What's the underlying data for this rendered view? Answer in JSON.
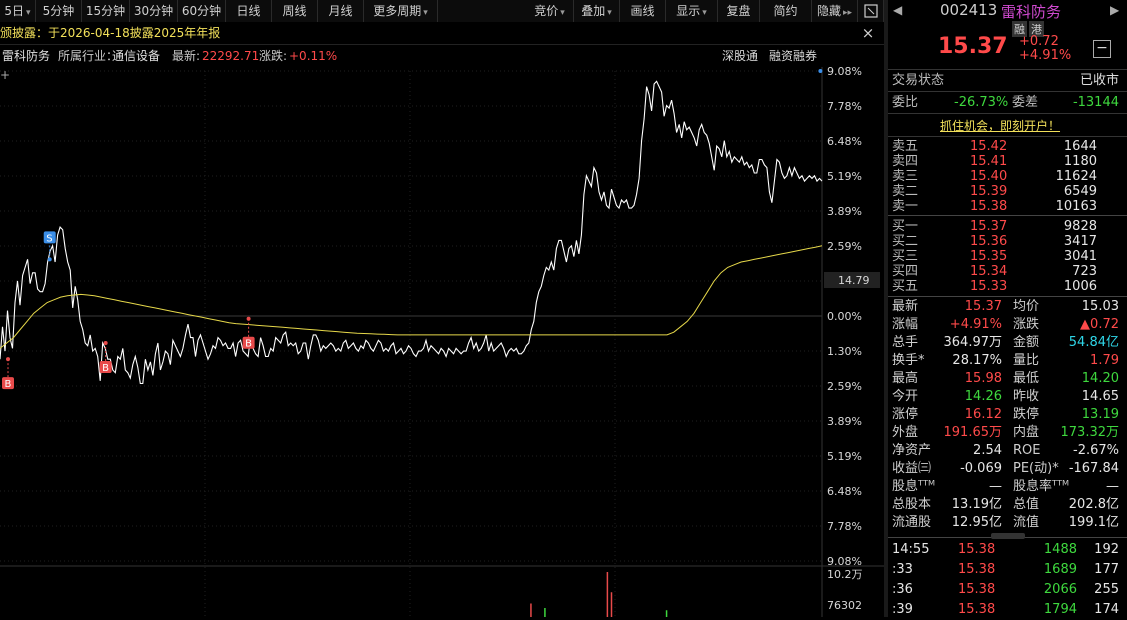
{
  "toolbar": {
    "left_items": [
      "5日",
      "5分钟",
      "15分钟",
      "30分钟",
      "60分钟",
      "日线",
      "周线",
      "月线",
      "更多周期"
    ],
    "right_items": [
      "竞价",
      "叠加",
      "画线",
      "显示",
      "复盘",
      "简约",
      "隐藏"
    ],
    "more_arrow": "▸▸",
    "dropdown_arrow": "▾"
  },
  "infobar": {
    "text": "颁披露：于2026-04-18披露2025年年报",
    "close": "×"
  },
  "stockbar": {
    "name": "雷科防务",
    "industry_label": "所属行业：",
    "industry": "通信设备",
    "latest_label": "最新:",
    "latest": "22292.71",
    "change_label": "涨跌:",
    "change": "+0.11%",
    "right_links": [
      "深股通",
      "融资融券"
    ]
  },
  "chart_data": {
    "type": "line",
    "y_ticks_pct": [
      "9.08%",
      "7.78%",
      "6.48%",
      "5.19%",
      "3.89%",
      "2.59%",
      "1.30%",
      "0.00%",
      "1.30%",
      "2.59%",
      "3.89%",
      "5.19%",
      "6.48%",
      "7.78%",
      "9.08%"
    ],
    "pct_range": [
      -9.08,
      9.08
    ],
    "cursor_price": "14.79",
    "series": [
      {
        "name": "",
        "color": "#ffffff",
        "values": [
          -1.6,
          -0.4,
          -1.3,
          0.2,
          -0.8,
          -1.2,
          0.5,
          1.3,
          0.4,
          1.5,
          1.8,
          2.1,
          1.2,
          1.6,
          1.6,
          1.0,
          0.9,
          0.9,
          1.2,
          2.0,
          2.4,
          2.6,
          2.0,
          3.0,
          3.3,
          3.2,
          2.5,
          2.0,
          1.7,
          0.3,
          1.1,
          0.6,
          -0.2,
          -0.5,
          -1.0,
          -1.1,
          -0.7,
          -1.3,
          -1.2,
          -1.5,
          -2.4,
          -1.0,
          -1.2,
          -1.6,
          -1.6,
          -2.0,
          -2.1,
          -1.5,
          -1.6,
          -1.2,
          -2.0,
          -2.1,
          -2.3,
          -1.8,
          -1.5,
          -1.9,
          -2.5,
          -2.5,
          -1.6,
          -2.0,
          -1.7,
          -2.2,
          -1.4,
          -1.0,
          -2.0,
          -1.7,
          -1.3,
          -1.4,
          -1.8,
          -0.9,
          -1.1,
          -1.3,
          -1.5,
          -1.2,
          -0.7,
          -0.3,
          -0.8,
          -0.8,
          -1.5,
          -0.9,
          -0.7,
          -1.0,
          -1.3,
          -1.6,
          -1.4,
          -1.1,
          -1.2,
          -0.8,
          -0.9,
          -1.1,
          -1.0,
          -1.2,
          -1.2,
          -1.0,
          -1.5,
          -1.0,
          -0.9,
          -1.3,
          -1.4,
          -1.5,
          -0.8,
          -1.2,
          -1.4,
          -1.5,
          -0.8,
          -1.1,
          -1.5,
          -1.5,
          -1.2,
          -1.3,
          -0.8,
          -0.9,
          -1.0,
          -0.7,
          -0.6,
          -1.1,
          -1.0,
          -1.1,
          -1.0,
          -1.4,
          -1.3,
          -1.0,
          -1.0,
          -1.6,
          -1.1,
          -0.7,
          -0.7,
          -0.9,
          -1.3,
          -1.1,
          -1.2,
          -1.1,
          -1.0,
          -1.1,
          -1.3,
          -1.2,
          -1.3,
          -1.0,
          -0.9,
          -1.2,
          -1.1,
          -1.0,
          -1.2,
          -1.3,
          -1.1,
          -1.2,
          -0.9,
          -1.0,
          -1.2,
          -1.3,
          -1.1,
          -0.9,
          -1.0,
          -1.3,
          -1.2,
          -1.3,
          -1.1,
          -1.0,
          -1.4,
          -1.3,
          -1.2,
          -1.4,
          -1.3,
          -1.1,
          -1.2,
          -1.4,
          -1.5,
          -1.3,
          -1.3,
          -1.2,
          -0.9,
          -1.3,
          -1.1,
          -1.2,
          -1.3,
          -1.4,
          -1.2,
          -1.3,
          -1.5,
          -1.2,
          -1.3,
          -1.4,
          -1.2,
          -1.3,
          -1.4,
          -1.3,
          -1.3,
          -1.0,
          -0.8,
          -1.2,
          -1.0,
          -1.3,
          -1.2,
          -1.0,
          -0.7,
          -1.3,
          -1.0,
          -1.3,
          -1.2,
          -1.1,
          -1.0,
          -1.2,
          -1.5,
          -1.3,
          -1.2,
          -1.3,
          -1.2,
          -1.4,
          -1.4,
          -1.3,
          -1.1,
          -1.0,
          -0.5,
          -0.2,
          0.5,
          0.9,
          1.1,
          1.5,
          1.8,
          1.7,
          2.0,
          1.7,
          2.5,
          2.8,
          2.8,
          2.4,
          2.0,
          2.5,
          2.6,
          2.2,
          2.8,
          2.3,
          3.0,
          4.5,
          5.2,
          5.0,
          4.8,
          5.5,
          5.3,
          4.6,
          4.3,
          4.6,
          4.1,
          4.0,
          4.7,
          4.4,
          4.1,
          4.0,
          4.3,
          4.2,
          4.3,
          4.0,
          4.0,
          4.1,
          4.5,
          5.1,
          6.5,
          7.3,
          8.5,
          8.2,
          7.6,
          8.6,
          8.7,
          8.5,
          8.3,
          7.4,
          7.8,
          7.7,
          8.0,
          7.5,
          6.8,
          7.1,
          6.6,
          7.2,
          6.9,
          7.0,
          6.8,
          6.6,
          6.3,
          6.9,
          7.1,
          6.8,
          6.7,
          6.4,
          5.9,
          5.4,
          6.3,
          6.2,
          5.9,
          6.5,
          5.9,
          6.1,
          5.7,
          5.9,
          5.8,
          5.7,
          5.9,
          5.6,
          5.7,
          5.5,
          5.6,
          5.3,
          5.3,
          5.8,
          5.8,
          5.6,
          5.5,
          4.6,
          4.2,
          5.0,
          5.8,
          5.7,
          5.3,
          5.1,
          5.2,
          5.5,
          5.2,
          5.5,
          5.3,
          5.1,
          5.2,
          5.0,
          5.1,
          5.2,
          5.1,
          5.2,
          5.0,
          5.1,
          5.0
        ]
      },
      {
        "name": "",
        "color": "#e6d84a",
        "values": [
          -1.2,
          -1.0,
          -0.8,
          -0.5,
          -0.2,
          0.1,
          0.3,
          0.5,
          0.6,
          0.7,
          0.75,
          0.78,
          0.8,
          0.78,
          0.75,
          0.7,
          0.65,
          0.6,
          0.55,
          0.5,
          0.45,
          0.4,
          0.35,
          0.3,
          0.25,
          0.2,
          0.15,
          0.1,
          0.05,
          0.0,
          -0.05,
          -0.1,
          -0.15,
          -0.2,
          -0.25,
          -0.28,
          -0.3,
          -0.32,
          -0.34,
          -0.36,
          -0.38,
          -0.4,
          -0.42,
          -0.44,
          -0.46,
          -0.48,
          -0.5,
          -0.52,
          -0.54,
          -0.56,
          -0.58,
          -0.6,
          -0.62,
          -0.64,
          -0.65,
          -0.66,
          -0.67,
          -0.68,
          -0.69,
          -0.7,
          -0.7,
          -0.7,
          -0.7,
          -0.7,
          -0.7,
          -0.7,
          -0.7,
          -0.7,
          -0.7,
          -0.7,
          -0.7,
          -0.7,
          -0.7,
          -0.7,
          -0.7,
          -0.7,
          -0.7,
          -0.7,
          -0.7,
          -0.7,
          -0.7,
          -0.7,
          -0.7,
          -0.7,
          -0.7,
          -0.7,
          -0.7,
          -0.7,
          -0.7,
          -0.7,
          -0.7,
          -0.7,
          -0.7,
          -0.7,
          -0.7,
          -0.7,
          -0.7,
          -0.7,
          -0.7,
          -0.7,
          -0.6,
          -0.4,
          -0.2,
          0.1,
          0.5,
          0.9,
          1.3,
          1.6,
          1.8,
          1.9,
          2.0,
          2.05,
          2.1,
          2.15,
          2.2,
          2.25,
          2.3,
          2.35,
          2.4,
          2.45,
          2.5,
          2.55,
          2.6
        ]
      }
    ],
    "markers": [
      {
        "label": "B",
        "idx": 0,
        "value": -1.6,
        "color": "#e84a4a",
        "dir": "below"
      },
      {
        "label": "S",
        "idx": 8,
        "value": 2.1,
        "color": "#3a8ee8",
        "dir": "above"
      },
      {
        "label": "B",
        "idx": 17,
        "value": -1.0,
        "color": "#e84a4a",
        "dir": "below"
      },
      {
        "label": "B",
        "idx": 40,
        "value": -0.1,
        "color": "#e84a4a",
        "dir": "below"
      },
      {
        "label": "S",
        "idx": 132,
        "value": 9.08,
        "color": "#3a8ee8",
        "dir": "above"
      }
    ],
    "volume_labels": [
      "10.2万",
      "76302"
    ],
    "volume_bars": [
      {
        "x_frac": 0.645,
        "h_frac": 0.3,
        "color": "#e84a4a"
      },
      {
        "x_frac": 0.662,
        "h_frac": 0.2,
        "color": "#3ed83e"
      },
      {
        "x_frac": 0.738,
        "h_frac": 1.0,
        "color": "#e84a4a"
      },
      {
        "x_frac": 0.743,
        "h_frac": 0.55,
        "color": "#e84a4a"
      },
      {
        "x_frac": 0.81,
        "h_frac": 0.15,
        "color": "#3ed83e"
      }
    ]
  },
  "panel": {
    "code": "002413",
    "name": "雷科防务",
    "tag_rong": "融",
    "tag_gang": "港",
    "price": "15.37",
    "change": "+0.72",
    "change_pct": "+4.91%",
    "minus": "−",
    "status_label": "交易状态",
    "status_value": "已收市",
    "weibi_label": "委比",
    "weibi_value": "-26.73%",
    "weicha_label": "委差",
    "weicha_value": "-13144",
    "promo": "抓住机会，即刻开户！",
    "sells": [
      {
        "label": "卖五",
        "price": "15.42",
        "vol": "1644"
      },
      {
        "label": "卖四",
        "price": "15.41",
        "vol": "1180"
      },
      {
        "label": "卖三",
        "price": "15.40",
        "vol": "11624"
      },
      {
        "label": "卖二",
        "price": "15.39",
        "vol": "6549"
      },
      {
        "label": "卖一",
        "price": "15.38",
        "vol": "10163"
      }
    ],
    "buys": [
      {
        "label": "买一",
        "price": "15.37",
        "vol": "9828"
      },
      {
        "label": "买二",
        "price": "15.36",
        "vol": "3417"
      },
      {
        "label": "买三",
        "price": "15.35",
        "vol": "3041"
      },
      {
        "label": "买四",
        "price": "15.34",
        "vol": "723"
      },
      {
        "label": "买五",
        "price": "15.33",
        "vol": "1006"
      }
    ],
    "stats": [
      {
        "l1": "最新",
        "v1": "15.37",
        "c1": "red",
        "l2": "均价",
        "v2": "15.03",
        "c2": "white"
      },
      {
        "l1": "涨幅",
        "v1": "+4.91%",
        "c1": "red",
        "l2": "涨跌",
        "v2": "▲0.72",
        "c2": "red"
      },
      {
        "l1": "总手",
        "v1": "364.97万",
        "c1": "white",
        "l2": "金额",
        "v2": "54.84亿",
        "c2": "cyan"
      },
      {
        "l1": "换手*",
        "v1": "28.17%",
        "c1": "white",
        "l2": "量比",
        "v2": "1.79",
        "c2": "red"
      },
      {
        "l1": "最高",
        "v1": "15.98",
        "c1": "red",
        "l2": "最低",
        "v2": "14.20",
        "c2": "green"
      },
      {
        "l1": "今开",
        "v1": "14.26",
        "c1": "green",
        "l2": "昨收",
        "v2": "14.65",
        "c2": "white"
      },
      {
        "l1": "涨停",
        "v1": "16.12",
        "c1": "red",
        "l2": "跌停",
        "v2": "13.19",
        "c2": "green"
      },
      {
        "l1": "外盘",
        "v1": "191.65万",
        "c1": "red",
        "l2": "内盘",
        "v2": "173.32万",
        "c2": "green"
      },
      {
        "l1": "净资产",
        "v1": "2.54",
        "c1": "white",
        "l2": "ROE",
        "v2": "-2.67%",
        "c2": "white"
      },
      {
        "l1": "收益㈢",
        "v1": "-0.069",
        "c1": "white",
        "l2": "PE(动)*",
        "v2": "-167.84",
        "c2": "white"
      },
      {
        "l1": "股息ᵀᵀᴹ",
        "v1": "—",
        "c1": "white",
        "l2": "股息率ᵀᵀᴹ",
        "v2": "—",
        "c2": "white"
      },
      {
        "l1": "总股本",
        "v1": "13.19亿",
        "c1": "white",
        "l2": "总值",
        "v2": "202.8亿",
        "c2": "white"
      },
      {
        "l1": "流通股",
        "v1": "12.95亿",
        "c1": "white",
        "l2": "流值",
        "v2": "199.1亿",
        "c2": "white"
      }
    ],
    "ticks": [
      {
        "time": "14:55",
        "price": "15.38",
        "vol": "1488",
        "num": "192"
      },
      {
        "time": ":33",
        "price": "15.38",
        "vol": "1689",
        "num": "177"
      },
      {
        "time": ":36",
        "price": "15.38",
        "vol": "2066",
        "num": "255"
      },
      {
        "time": ":39",
        "price": "15.38",
        "vol": "1794",
        "num": "174"
      }
    ]
  }
}
